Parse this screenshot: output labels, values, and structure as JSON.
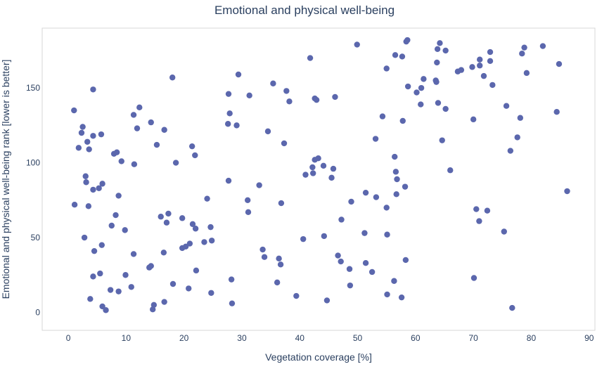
{
  "chart_data": {
    "type": "scatter",
    "title": "Emotional and physical well-being",
    "xlabel": "Vegetation coverage [%]",
    "ylabel": "Emotional and physical well-being rank [lower is better]",
    "xlim": [
      -4.5,
      91
    ],
    "ylim": [
      -12,
      190
    ],
    "xticks": [
      0,
      10,
      20,
      30,
      40,
      50,
      60,
      70,
      80,
      90
    ],
    "yticks": [
      0,
      50,
      100,
      150
    ],
    "grid": false,
    "marker_color": "#5b67ad",
    "series": [
      {
        "points": [
          [
            1,
            135
          ],
          [
            2.5,
            124
          ],
          [
            2.3,
            120
          ],
          [
            1.8,
            110
          ],
          [
            3.3,
            114
          ],
          [
            3.6,
            109
          ],
          [
            4.3,
            118
          ],
          [
            5.7,
            119
          ],
          [
            4.3,
            149
          ],
          [
            11.3,
            132
          ],
          [
            12.3,
            137
          ],
          [
            11.9,
            123
          ],
          [
            14.3,
            127
          ],
          [
            16.6,
            122
          ],
          [
            15.3,
            112
          ],
          [
            18,
            157
          ],
          [
            21.4,
            111
          ],
          [
            21.9,
            105
          ],
          [
            18.6,
            100
          ],
          [
            7.9,
            106
          ],
          [
            8.4,
            107
          ],
          [
            9.2,
            101
          ],
          [
            11.4,
            99
          ],
          [
            3,
            91
          ],
          [
            3.1,
            87
          ],
          [
            4.3,
            82
          ],
          [
            5.3,
            83
          ],
          [
            5.9,
            86
          ],
          [
            1.1,
            72
          ],
          [
            3.5,
            71
          ],
          [
            8.7,
            78
          ],
          [
            8.2,
            65
          ],
          [
            7.5,
            58
          ],
          [
            9.8,
            55
          ],
          [
            16,
            64
          ],
          [
            17.3,
            66
          ],
          [
            17,
            60
          ],
          [
            19.7,
            63
          ],
          [
            21.5,
            59
          ],
          [
            22,
            56
          ],
          [
            24,
            76
          ],
          [
            24.6,
            57
          ],
          [
            2.8,
            50
          ],
          [
            4.5,
            41
          ],
          [
            5.8,
            45
          ],
          [
            11.3,
            39
          ],
          [
            16.5,
            40
          ],
          [
            19.7,
            43
          ],
          [
            20.3,
            44
          ],
          [
            21,
            46
          ],
          [
            23.5,
            47
          ],
          [
            24.8,
            48
          ],
          [
            5.5,
            26
          ],
          [
            4.3,
            24
          ],
          [
            9.9,
            25
          ],
          [
            14,
            30
          ],
          [
            14.3,
            31
          ],
          [
            18.1,
            19
          ],
          [
            22.1,
            28
          ],
          [
            7.3,
            15
          ],
          [
            8.7,
            14
          ],
          [
            10.9,
            17
          ],
          [
            20.8,
            16
          ],
          [
            24.7,
            13
          ],
          [
            3.8,
            9
          ],
          [
            5.9,
            4
          ],
          [
            6.5,
            1.5
          ],
          [
            14.6,
            2
          ],
          [
            14.8,
            5
          ],
          [
            16.6,
            7
          ],
          [
            28.3,
            6
          ],
          [
            27.7,
            146
          ],
          [
            29.4,
            159
          ],
          [
            31.3,
            145
          ],
          [
            27.6,
            126
          ],
          [
            27.9,
            133
          ],
          [
            29.1,
            125
          ],
          [
            34.5,
            121
          ],
          [
            35.4,
            153
          ],
          [
            37.7,
            148
          ],
          [
            38.2,
            141
          ],
          [
            37.3,
            113
          ],
          [
            41.8,
            170
          ],
          [
            42.6,
            143
          ],
          [
            42.9,
            142
          ],
          [
            46.1,
            144
          ],
          [
            27.7,
            88
          ],
          [
            33,
            85
          ],
          [
            31,
            75
          ],
          [
            31.1,
            67
          ],
          [
            36.8,
            73
          ],
          [
            41,
            92
          ],
          [
            42.2,
            97
          ],
          [
            42.6,
            102
          ],
          [
            43.2,
            103
          ],
          [
            44.1,
            98
          ],
          [
            42.3,
            93
          ],
          [
            45.8,
            96
          ],
          [
            45.5,
            90
          ],
          [
            48.9,
            74
          ],
          [
            47.2,
            62
          ],
          [
            40.6,
            49
          ],
          [
            44.2,
            51
          ],
          [
            33.6,
            42
          ],
          [
            33.9,
            37
          ],
          [
            36.4,
            36
          ],
          [
            36.7,
            32
          ],
          [
            28.2,
            22
          ],
          [
            36.1,
            20
          ],
          [
            39.4,
            11
          ],
          [
            44.7,
            8
          ],
          [
            46.6,
            38
          ],
          [
            47.1,
            34
          ],
          [
            48.6,
            29
          ],
          [
            48.7,
            18
          ],
          [
            49.9,
            179
          ],
          [
            55,
            163
          ],
          [
            56.5,
            172
          ],
          [
            57.7,
            171
          ],
          [
            58.4,
            181
          ],
          [
            58.6,
            182
          ],
          [
            54.3,
            131
          ],
          [
            53.1,
            116
          ],
          [
            57.8,
            128
          ],
          [
            58.7,
            151
          ],
          [
            60.2,
            147
          ],
          [
            61,
            150
          ],
          [
            61.4,
            156
          ],
          [
            60.9,
            139
          ],
          [
            63.5,
            155
          ],
          [
            63.6,
            154
          ],
          [
            63.7,
            167
          ],
          [
            63.8,
            176
          ],
          [
            64.2,
            180
          ],
          [
            65.2,
            175
          ],
          [
            63.9,
            140
          ],
          [
            65.2,
            136
          ],
          [
            64.6,
            115
          ],
          [
            66,
            95
          ],
          [
            67.3,
            161
          ],
          [
            67.9,
            162
          ],
          [
            69.8,
            164
          ],
          [
            71.1,
            165
          ],
          [
            71.1,
            169
          ],
          [
            71.8,
            158
          ],
          [
            72.9,
            174
          ],
          [
            72.9,
            168
          ],
          [
            73.3,
            152
          ],
          [
            70,
            129
          ],
          [
            75.7,
            138
          ],
          [
            76.4,
            108
          ],
          [
            77.6,
            117
          ],
          [
            78.1,
            130
          ],
          [
            78.4,
            173
          ],
          [
            78.8,
            177
          ],
          [
            79.2,
            160
          ],
          [
            82,
            178
          ],
          [
            84.4,
            134
          ],
          [
            84.8,
            166
          ],
          [
            86.2,
            81
          ],
          [
            51.4,
            80
          ],
          [
            53.2,
            77
          ],
          [
            55,
            70
          ],
          [
            56.4,
            104
          ],
          [
            56.6,
            94
          ],
          [
            56.8,
            89
          ],
          [
            56.7,
            79
          ],
          [
            58.2,
            84
          ],
          [
            51.2,
            53
          ],
          [
            55.1,
            52
          ],
          [
            51.4,
            33
          ],
          [
            52.5,
            27
          ],
          [
            56.3,
            21
          ],
          [
            58.3,
            35
          ],
          [
            55.1,
            12
          ],
          [
            57.6,
            10
          ],
          [
            70.5,
            69
          ],
          [
            72.4,
            68
          ],
          [
            71,
            61
          ],
          [
            75.3,
            54
          ],
          [
            70.1,
            23
          ],
          [
            76.7,
            3
          ]
        ]
      }
    ]
  }
}
